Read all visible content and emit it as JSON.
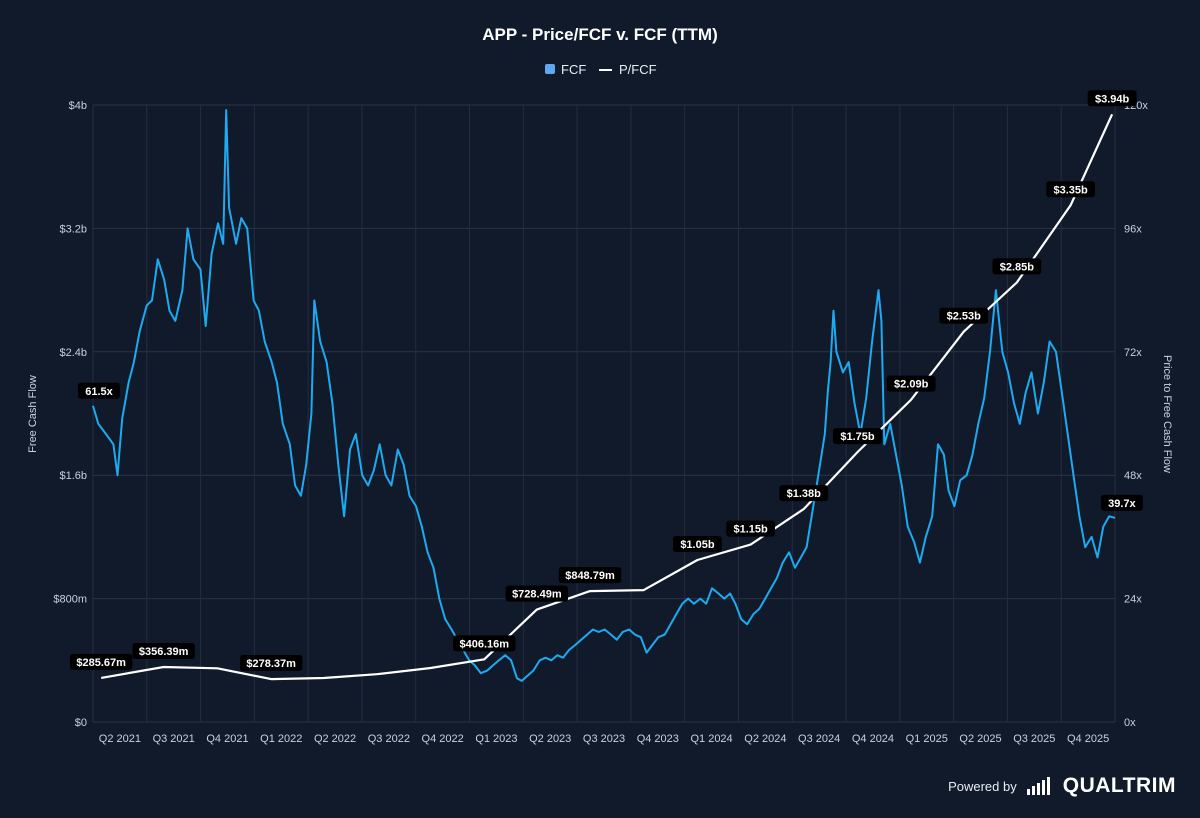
{
  "chart_data": {
    "type": "line",
    "title": "APP - Price/FCF v. FCF (TTM)",
    "legend": {
      "placement": "top-center",
      "entries": [
        {
          "name": "FCF",
          "marker": "square",
          "color": "#5da8ef"
        },
        {
          "name": "P/FCF",
          "marker": "line",
          "color": "#ffffff"
        }
      ]
    },
    "grid": true,
    "x_ticks": [
      "Q2 2021",
      "Q3 2021",
      "Q4 2021",
      "Q1 2022",
      "Q2 2022",
      "Q3 2022",
      "Q4 2022",
      "Q1 2023",
      "Q2 2023",
      "Q3 2023",
      "Q4 2023",
      "Q1 2024",
      "Q2 2024",
      "Q3 2024",
      "Q4 2024",
      "Q1 2025",
      "Q2 2025",
      "Q3 2025",
      "Q4 2025"
    ],
    "x_range": [
      "2021-03-01",
      "2025-12-15"
    ],
    "left_axis": {
      "label": "Free Cash Flow",
      "ticks": [
        "$0",
        "$800m",
        "$1.6b",
        "$2.4b",
        "$3.2b",
        "$4b"
      ],
      "range": [
        0,
        4000000000
      ]
    },
    "right_axis": {
      "label": "Price to Free Cash Flow",
      "ticks": [
        "0x",
        "24x",
        "48x",
        "72x",
        "96x",
        "120x"
      ],
      "range": [
        0,
        120
      ]
    },
    "series": [
      {
        "name": "P/FCF",
        "axis": "right",
        "color": "#1eaaf0",
        "data": [
          [
            "2021-03-01",
            61.5
          ],
          [
            "2021-03-10",
            58
          ],
          [
            "2021-03-20",
            56.5
          ],
          [
            "2021-04-05",
            54
          ],
          [
            "2021-04-12",
            48
          ],
          [
            "2021-04-20",
            59
          ],
          [
            "2021-05-01",
            66
          ],
          [
            "2021-05-10",
            70
          ],
          [
            "2021-05-20",
            76
          ],
          [
            "2021-06-01",
            81
          ],
          [
            "2021-06-10",
            82
          ],
          [
            "2021-06-20",
            90
          ],
          [
            "2021-07-01",
            86
          ],
          [
            "2021-07-10",
            80
          ],
          [
            "2021-07-20",
            78
          ],
          [
            "2021-08-01",
            84
          ],
          [
            "2021-08-10",
            96
          ],
          [
            "2021-08-20",
            90
          ],
          [
            "2021-09-01",
            88
          ],
          [
            "2021-09-10",
            77
          ],
          [
            "2021-09-20",
            91
          ],
          [
            "2021-10-01",
            97
          ],
          [
            "2021-10-10",
            93
          ],
          [
            "2021-10-15",
            119
          ],
          [
            "2021-10-20",
            100
          ],
          [
            "2021-11-01",
            93
          ],
          [
            "2021-11-10",
            98
          ],
          [
            "2021-11-20",
            96
          ],
          [
            "2021-12-01",
            82
          ],
          [
            "2021-12-10",
            80
          ],
          [
            "2021-12-20",
            74
          ],
          [
            "2022-01-01",
            70
          ],
          [
            "2022-01-10",
            66
          ],
          [
            "2022-01-20",
            58
          ],
          [
            "2022-02-01",
            54
          ],
          [
            "2022-02-10",
            46
          ],
          [
            "2022-02-20",
            44
          ],
          [
            "2022-03-01",
            50
          ],
          [
            "2022-03-10",
            60
          ],
          [
            "2022-03-15",
            82
          ],
          [
            "2022-03-25",
            74
          ],
          [
            "2022-04-05",
            70
          ],
          [
            "2022-04-15",
            62
          ],
          [
            "2022-04-25",
            50
          ],
          [
            "2022-05-05",
            40
          ],
          [
            "2022-05-15",
            53
          ],
          [
            "2022-05-25",
            56
          ],
          [
            "2022-06-05",
            48
          ],
          [
            "2022-06-15",
            46
          ],
          [
            "2022-06-25",
            49
          ],
          [
            "2022-07-05",
            54
          ],
          [
            "2022-07-15",
            48
          ],
          [
            "2022-07-25",
            46
          ],
          [
            "2022-08-05",
            53
          ],
          [
            "2022-08-15",
            50
          ],
          [
            "2022-08-25",
            44
          ],
          [
            "2022-09-05",
            42
          ],
          [
            "2022-09-15",
            38
          ],
          [
            "2022-09-25",
            33
          ],
          [
            "2022-10-05",
            30
          ],
          [
            "2022-10-15",
            24
          ],
          [
            "2022-10-25",
            20
          ],
          [
            "2022-11-05",
            18
          ],
          [
            "2022-11-15",
            16
          ],
          [
            "2022-11-25",
            14
          ],
          [
            "2022-12-05",
            12
          ],
          [
            "2022-12-15",
            11
          ],
          [
            "2022-12-25",
            9.5
          ],
          [
            "2023-01-05",
            10
          ],
          [
            "2023-01-15",
            11
          ],
          [
            "2023-01-25",
            12
          ],
          [
            "2023-02-05",
            13
          ],
          [
            "2023-02-15",
            12
          ],
          [
            "2023-02-25",
            8.5
          ],
          [
            "2023-03-05",
            8
          ],
          [
            "2023-03-15",
            9
          ],
          [
            "2023-03-25",
            10
          ],
          [
            "2023-04-05",
            12
          ],
          [
            "2023-04-15",
            12.5
          ],
          [
            "2023-04-25",
            12
          ],
          [
            "2023-05-05",
            13
          ],
          [
            "2023-05-15",
            12.5
          ],
          [
            "2023-05-25",
            14
          ],
          [
            "2023-06-05",
            15
          ],
          [
            "2023-06-15",
            16
          ],
          [
            "2023-06-25",
            17
          ],
          [
            "2023-07-05",
            18
          ],
          [
            "2023-07-15",
            17.5
          ],
          [
            "2023-07-25",
            18
          ],
          [
            "2023-08-05",
            17
          ],
          [
            "2023-08-15",
            16
          ],
          [
            "2023-08-25",
            17.5
          ],
          [
            "2023-09-05",
            18
          ],
          [
            "2023-09-15",
            17
          ],
          [
            "2023-09-25",
            16.5
          ],
          [
            "2023-10-05",
            13.5
          ],
          [
            "2023-10-15",
            15
          ],
          [
            "2023-10-25",
            16.5
          ],
          [
            "2023-11-05",
            17
          ],
          [
            "2023-11-15",
            19
          ],
          [
            "2023-11-25",
            21
          ],
          [
            "2023-12-05",
            23
          ],
          [
            "2023-12-15",
            24
          ],
          [
            "2023-12-25",
            23
          ],
          [
            "2024-01-05",
            24
          ],
          [
            "2024-01-15",
            23
          ],
          [
            "2024-01-25",
            26
          ],
          [
            "2024-02-05",
            25
          ],
          [
            "2024-02-15",
            24
          ],
          [
            "2024-02-25",
            25
          ],
          [
            "2024-03-05",
            23
          ],
          [
            "2024-03-15",
            20
          ],
          [
            "2024-03-25",
            19
          ],
          [
            "2024-04-05",
            21
          ],
          [
            "2024-04-15",
            22
          ],
          [
            "2024-04-25",
            24
          ],
          [
            "2024-05-05",
            26
          ],
          [
            "2024-05-15",
            28
          ],
          [
            "2024-05-25",
            31
          ],
          [
            "2024-06-05",
            33
          ],
          [
            "2024-06-15",
            30
          ],
          [
            "2024-06-25",
            32
          ],
          [
            "2024-07-05",
            34
          ],
          [
            "2024-07-15",
            41
          ],
          [
            "2024-07-25",
            48
          ],
          [
            "2024-08-05",
            56
          ],
          [
            "2024-08-10",
            64
          ],
          [
            "2024-08-15",
            70
          ],
          [
            "2024-08-20",
            80
          ],
          [
            "2024-08-25",
            72
          ],
          [
            "2024-09-05",
            68
          ],
          [
            "2024-09-15",
            70
          ],
          [
            "2024-09-25",
            62
          ],
          [
            "2024-10-05",
            56
          ],
          [
            "2024-10-15",
            63
          ],
          [
            "2024-10-25",
            74
          ],
          [
            "2024-11-05",
            84
          ],
          [
            "2024-11-10",
            78
          ],
          [
            "2024-11-15",
            54
          ],
          [
            "2024-11-25",
            58
          ],
          [
            "2024-12-05",
            52
          ],
          [
            "2024-12-15",
            46
          ],
          [
            "2024-12-25",
            38
          ],
          [
            "2025-01-05",
            35
          ],
          [
            "2025-01-15",
            31
          ],
          [
            "2025-01-25",
            36
          ],
          [
            "2025-02-05",
            40
          ],
          [
            "2025-02-15",
            54
          ],
          [
            "2025-02-25",
            52
          ],
          [
            "2025-03-05",
            45
          ],
          [
            "2025-03-15",
            42
          ],
          [
            "2025-03-25",
            47
          ],
          [
            "2025-04-05",
            48
          ],
          [
            "2025-04-15",
            52
          ],
          [
            "2025-04-25",
            58
          ],
          [
            "2025-05-05",
            63
          ],
          [
            "2025-05-15",
            72
          ],
          [
            "2025-05-25",
            84
          ],
          [
            "2025-06-05",
            72
          ],
          [
            "2025-06-15",
            68
          ],
          [
            "2025-06-25",
            62
          ],
          [
            "2025-07-05",
            58
          ],
          [
            "2025-07-15",
            64
          ],
          [
            "2025-07-25",
            68
          ],
          [
            "2025-08-05",
            60
          ],
          [
            "2025-08-15",
            66
          ],
          [
            "2025-08-25",
            74
          ],
          [
            "2025-09-05",
            72
          ],
          [
            "2025-09-15",
            64
          ],
          [
            "2025-09-25",
            56
          ],
          [
            "2025-10-05",
            48
          ],
          [
            "2025-10-15",
            40
          ],
          [
            "2025-10-25",
            34
          ],
          [
            "2025-11-05",
            36
          ],
          [
            "2025-11-15",
            32
          ],
          [
            "2025-11-25",
            38
          ],
          [
            "2025-12-05",
            40
          ],
          [
            "2025-12-15",
            39.7
          ]
        ],
        "data_labels": [
          {
            "x": "2021-03-01",
            "y": 61.5,
            "text": "61.5x"
          },
          {
            "x": "2025-12-08",
            "y": 39.7,
            "text": "39.7x"
          }
        ]
      },
      {
        "name": "FCF",
        "axis": "left",
        "color": "#ffffff",
        "data": [
          [
            "2021-03-15",
            285670000
          ],
          [
            "2021-06-30",
            356390000
          ],
          [
            "2021-09-30",
            348000000
          ],
          [
            "2021-12-31",
            278370000
          ],
          [
            "2022-03-31",
            285000000
          ],
          [
            "2022-06-30",
            310000000
          ],
          [
            "2022-09-30",
            350000000
          ],
          [
            "2022-12-31",
            406160000
          ],
          [
            "2023-03-31",
            728490000
          ],
          [
            "2023-06-30",
            848790000
          ],
          [
            "2023-09-30",
            855000000
          ],
          [
            "2023-12-31",
            1050000000
          ],
          [
            "2024-03-31",
            1150000000
          ],
          [
            "2024-06-30",
            1380000000
          ],
          [
            "2024-09-30",
            1750000000
          ],
          [
            "2024-12-31",
            2090000000
          ],
          [
            "2025-03-31",
            2530000000
          ],
          [
            "2025-06-30",
            2850000000
          ],
          [
            "2025-09-30",
            3350000000
          ],
          [
            "2025-12-10",
            3940000000
          ]
        ],
        "data_labels": [
          {
            "x": "2021-03-15",
            "y": 285670000,
            "text": "$285.67m"
          },
          {
            "x": "2021-06-30",
            "y": 356390000,
            "text": "$356.39m"
          },
          {
            "x": "2021-12-31",
            "y": 278370000,
            "text": "$278.37m"
          },
          {
            "x": "2022-12-31",
            "y": 406160000,
            "text": "$406.16m"
          },
          {
            "x": "2023-03-31",
            "y": 728490000,
            "text": "$728.49m"
          },
          {
            "x": "2023-06-30",
            "y": 848790000,
            "text": "$848.79m"
          },
          {
            "x": "2023-12-31",
            "y": 1050000000,
            "text": "$1.05b"
          },
          {
            "x": "2024-03-31",
            "y": 1150000000,
            "text": "$1.15b"
          },
          {
            "x": "2024-06-30",
            "y": 1380000000,
            "text": "$1.38b"
          },
          {
            "x": "2024-09-30",
            "y": 1750000000,
            "text": "$1.75b"
          },
          {
            "x": "2024-12-31",
            "y": 2090000000,
            "text": "$2.09b"
          },
          {
            "x": "2025-03-31",
            "y": 2530000000,
            "text": "$2.53b"
          },
          {
            "x": "2025-06-30",
            "y": 2850000000,
            "text": "$2.85b"
          },
          {
            "x": "2025-09-30",
            "y": 3350000000,
            "text": "$3.35b"
          },
          {
            "x": "2025-12-10",
            "y": 3940000000,
            "text": "$3.94b"
          }
        ]
      }
    ]
  },
  "footer": {
    "powered_by": "Powered by",
    "brand": "QUALTRIM"
  }
}
